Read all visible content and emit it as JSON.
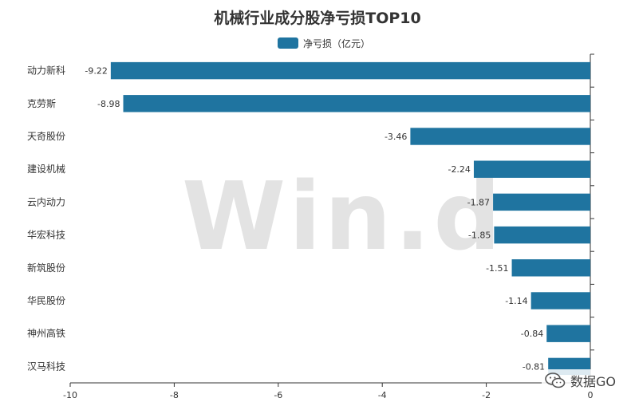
{
  "chart_data": {
    "type": "bar",
    "orientation": "horizontal",
    "title": "机械行业成分股净亏损TOP10",
    "categories": [
      "动力新科",
      "克劳斯",
      "天奇股份",
      "建设机械",
      "云内动力",
      "华宏科技",
      "新筑股份",
      "华民股份",
      "神州高铁",
      "汉马科技"
    ],
    "series": [
      {
        "name": "净亏损（亿元）",
        "values": [
          -9.22,
          -8.98,
          -3.46,
          -2.24,
          -1.87,
          -1.85,
          -1.51,
          -1.14,
          -0.84,
          -0.81
        ]
      }
    ],
    "value_labels": [
      "-9.22",
      "-8.98",
      "-3.46",
      "-2.24",
      "-1.87",
      "-1.85",
      "-1.51",
      "-1.14",
      "-0.84",
      "-0.81"
    ],
    "xlim": [
      -10,
      0
    ],
    "xticks": [
      "-10",
      "-8",
      "-6",
      "-4",
      "-2",
      "0"
    ],
    "grid": false,
    "legend_position": "top-center",
    "colors": {
      "bar": "#1f74a0",
      "axis": "#333333",
      "text": "#333333"
    }
  },
  "watermark": "Win.d",
  "badge": {
    "text": "数据GO",
    "icon": "wechat-icon"
  }
}
